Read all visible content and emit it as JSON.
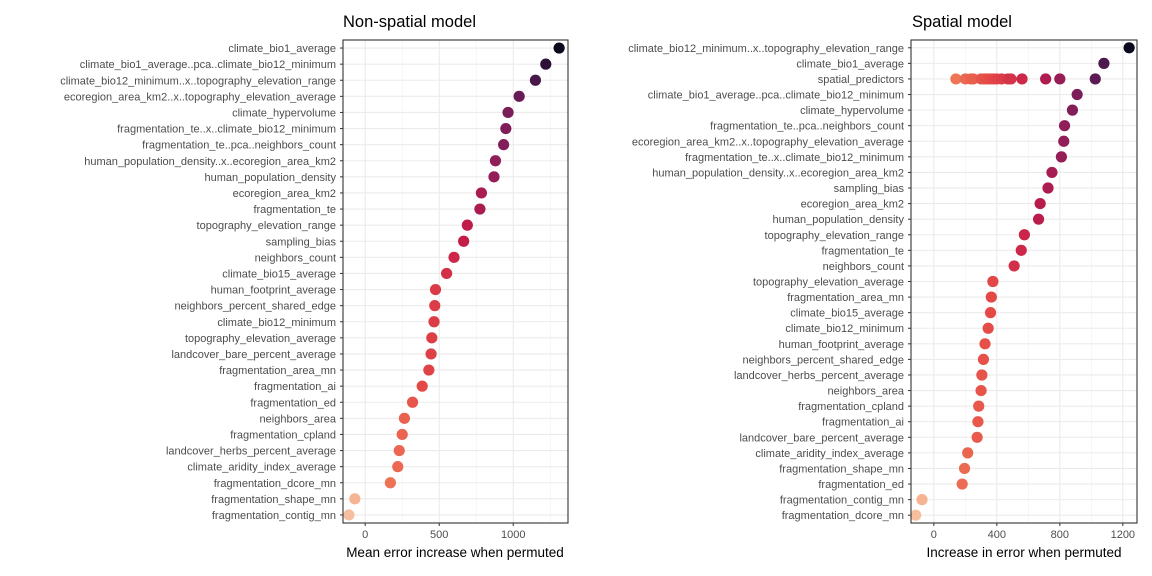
{
  "chart_data": [
    {
      "type": "scatter",
      "title": "Non-spatial model",
      "xlabel": "Mean error increase when permuted",
      "ylabel": "",
      "xlim": [
        -150,
        1370
      ],
      "xticks": [
        0,
        500,
        1000
      ],
      "xtick_labels": [
        "0",
        "500",
        "1000"
      ],
      "grid": true,
      "colormap": "rocket",
      "points": [
        {
          "label": "climate_bio1_average",
          "value": 1310
        },
        {
          "label": "climate_bio1_average..pca..climate_bio12_minimum",
          "value": 1220
        },
        {
          "label": "climate_bio12_minimum..x..topography_elevation_range",
          "value": 1150
        },
        {
          "label": "ecoregion_area_km2..x..topography_elevation_average",
          "value": 1040
        },
        {
          "label": "climate_hypervolume",
          "value": 965
        },
        {
          "label": "fragmentation_te..x..climate_bio12_minimum",
          "value": 950
        },
        {
          "label": "fragmentation_te..pca..neighbors_count",
          "value": 935
        },
        {
          "label": "human_population_density..x..ecoregion_area_km2",
          "value": 880
        },
        {
          "label": "human_population_density",
          "value": 870
        },
        {
          "label": "ecoregion_area_km2",
          "value": 785
        },
        {
          "label": "fragmentation_te",
          "value": 775
        },
        {
          "label": "topography_elevation_range",
          "value": 690
        },
        {
          "label": "sampling_bias",
          "value": 665
        },
        {
          "label": "neighbors_count",
          "value": 600
        },
        {
          "label": "climate_bio15_average",
          "value": 550
        },
        {
          "label": "human_footprint_average",
          "value": 475
        },
        {
          "label": "neighbors_percent_shared_edge",
          "value": 470
        },
        {
          "label": "climate_bio12_minimum",
          "value": 465
        },
        {
          "label": "topography_elevation_average",
          "value": 450
        },
        {
          "label": "landcover_bare_percent_average",
          "value": 445
        },
        {
          "label": "fragmentation_area_mn",
          "value": 430
        },
        {
          "label": "fragmentation_ai",
          "value": 385
        },
        {
          "label": "fragmentation_ed",
          "value": 320
        },
        {
          "label": "neighbors_area",
          "value": 265
        },
        {
          "label": "fragmentation_cpland",
          "value": 250
        },
        {
          "label": "landcover_herbs_percent_average",
          "value": 230
        },
        {
          "label": "climate_aridity_index_average",
          "value": 220
        },
        {
          "label": "fragmentation_dcore_mn",
          "value": 170
        },
        {
          "label": "fragmentation_shape_mn",
          "value": -70
        },
        {
          "label": "fragmentation_contig_mn",
          "value": -110
        }
      ]
    },
    {
      "type": "scatter",
      "title": "Spatial model",
      "xlabel": "Increase in error when permuted",
      "ylabel": "",
      "xlim": [
        -145,
        1290
      ],
      "xticks": [
        0,
        400,
        800,
        1200
      ],
      "xtick_labels": [
        "0",
        "400",
        "800",
        "1200"
      ],
      "grid": true,
      "colormap": "rocket",
      "points": [
        {
          "label": "climate_bio12_minimum..x..topography_elevation_range",
          "value": 1240
        },
        {
          "label": "climate_bio1_average",
          "value": 1080
        },
        {
          "label": "spatial_predictors",
          "values": [
            140,
            200,
            235,
            250,
            300,
            320,
            340,
            360,
            380,
            400,
            430,
            470,
            490,
            560,
            710,
            800,
            1025
          ]
        },
        {
          "label": "climate_bio1_average..pca..climate_bio12_minimum",
          "value": 910
        },
        {
          "label": "climate_hypervolume",
          "value": 880
        },
        {
          "label": "fragmentation_te..pca..neighbors_count",
          "value": 830
        },
        {
          "label": "ecoregion_area_km2..x..topography_elevation_average",
          "value": 825
        },
        {
          "label": "fragmentation_te..x..climate_bio12_minimum",
          "value": 810
        },
        {
          "label": "human_population_density..x..ecoregion_area_km2",
          "value": 750
        },
        {
          "label": "sampling_bias",
          "value": 725
        },
        {
          "label": "ecoregion_area_km2",
          "value": 675
        },
        {
          "label": "human_population_density",
          "value": 665
        },
        {
          "label": "topography_elevation_range",
          "value": 575
        },
        {
          "label": "fragmentation_te",
          "value": 555
        },
        {
          "label": "neighbors_count",
          "value": 510
        },
        {
          "label": "topography_elevation_average",
          "value": 375
        },
        {
          "label": "fragmentation_area_mn",
          "value": 365
        },
        {
          "label": "climate_bio15_average",
          "value": 360
        },
        {
          "label": "climate_bio12_minimum",
          "value": 345
        },
        {
          "label": "human_footprint_average",
          "value": 325
        },
        {
          "label": "neighbors_percent_shared_edge",
          "value": 315
        },
        {
          "label": "landcover_herbs_percent_average",
          "value": 305
        },
        {
          "label": "neighbors_area",
          "value": 300
        },
        {
          "label": "fragmentation_cpland",
          "value": 285
        },
        {
          "label": "fragmentation_ai",
          "value": 280
        },
        {
          "label": "landcover_bare_percent_average",
          "value": 275
        },
        {
          "label": "climate_aridity_index_average",
          "value": 215
        },
        {
          "label": "fragmentation_shape_mn",
          "value": 195
        },
        {
          "label": "fragmentation_ed",
          "value": 180
        },
        {
          "label": "fragmentation_contig_mn",
          "value": -75
        },
        {
          "label": "fragmentation_dcore_mn",
          "value": -115
        }
      ]
    }
  ]
}
